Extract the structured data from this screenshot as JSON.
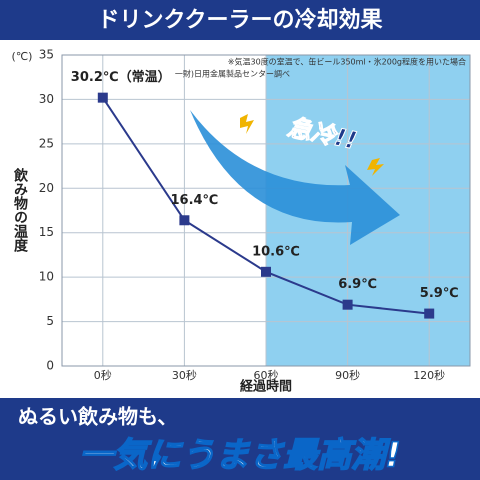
{
  "chart_data": {
    "type": "line",
    "title": "ドリンククーラーの冷却効果",
    "x": [
      0,
      30,
      60,
      90,
      120
    ],
    "series": [
      {
        "name": "飲み物の温度",
        "color": "#2b3a8c",
        "values": [
          30.2,
          16.4,
          10.6,
          6.9,
          5.9
        ],
        "value_labels": [
          "30.2℃（常温）",
          "16.4℃",
          "10.6℃",
          "6.9℃",
          "5.9℃"
        ]
      }
    ],
    "xlim": [
      -15,
      135
    ],
    "xticks": [
      {
        "value": 0,
        "label": "0秒"
      },
      {
        "value": 30,
        "label": "30秒"
      },
      {
        "value": 60,
        "label": "60秒"
      },
      {
        "value": 90,
        "label": "90秒"
      },
      {
        "value": 120,
        "label": "120秒"
      }
    ],
    "ylim": [
      0,
      35
    ],
    "yticks": [
      0,
      5,
      10,
      15,
      20,
      25,
      30,
      35
    ],
    "y_unit": "(℃)",
    "ylabel": "飲み物の温度",
    "xlabel": "経過時間",
    "grid": true,
    "notes": [
      "※気温30度の室温で、缶ビール350ml・氷200g程度を用いた場合",
      "一財)日用金属製品センター調べ"
    ],
    "annotation": "急冷!!"
  },
  "banner": {
    "line1": "ぬるい飲み物も、",
    "line2": "一気にうまさ最高潮!"
  }
}
